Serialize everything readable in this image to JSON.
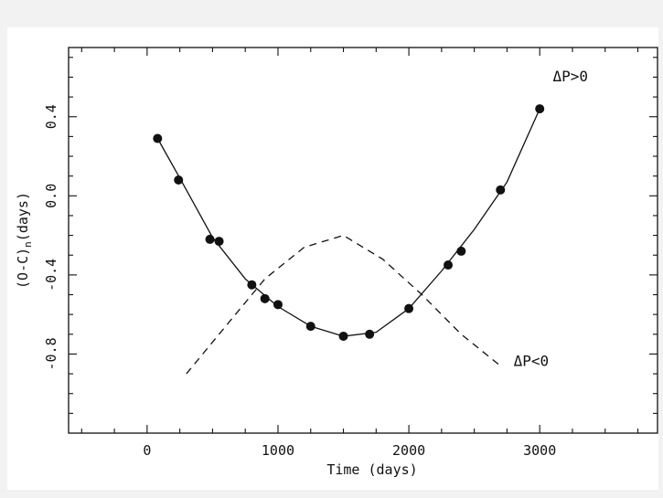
{
  "chart_data": {
    "type": "scatter",
    "xlabel": "Time (days)",
    "ylabel": "(O-C)n (days)",
    "ylabel_main": "(O-C)",
    "ylabel_sub": "n",
    "ylabel_tail": "(days)",
    "xlim": [
      -600,
      3900
    ],
    "ylim": [
      -1.2,
      0.75
    ],
    "x_ticks": [
      0,
      1000,
      2000,
      3000
    ],
    "x_tick_labels": [
      "0",
      "1000",
      "2000",
      "3000"
    ],
    "y_ticks": [
      0.4,
      0.0,
      -0.4,
      -0.8
    ],
    "y_tick_labels": [
      "0.4",
      "0.0",
      "-0.4",
      "-0.8"
    ],
    "grid": false,
    "legend": "none",
    "series": [
      {
        "style": "points",
        "points": [
          {
            "x": 80,
            "y": 0.29
          },
          {
            "x": 240,
            "y": 0.08
          },
          {
            "x": 480,
            "y": -0.22
          },
          {
            "x": 550,
            "y": -0.23
          },
          {
            "x": 800,
            "y": -0.45
          },
          {
            "x": 900,
            "y": -0.52
          },
          {
            "x": 1000,
            "y": -0.55
          },
          {
            "x": 1250,
            "y": -0.66
          },
          {
            "x": 1500,
            "y": -0.71
          },
          {
            "x": 1700,
            "y": -0.7
          },
          {
            "x": 2000,
            "y": -0.57
          },
          {
            "x": 2300,
            "y": -0.35
          },
          {
            "x": 2400,
            "y": -0.28
          },
          {
            "x": 2700,
            "y": 0.03
          },
          {
            "x": 3000,
            "y": 0.44
          }
        ]
      },
      {
        "style": "solid-curve",
        "points": [
          {
            "x": 80,
            "y": 0.29
          },
          {
            "x": 250,
            "y": 0.09
          },
          {
            "x": 500,
            "y": -0.21
          },
          {
            "x": 750,
            "y": -0.42
          },
          {
            "x": 1000,
            "y": -0.56
          },
          {
            "x": 1250,
            "y": -0.66
          },
          {
            "x": 1500,
            "y": -0.71
          },
          {
            "x": 1750,
            "y": -0.69
          },
          {
            "x": 2000,
            "y": -0.57
          },
          {
            "x": 2250,
            "y": -0.38
          },
          {
            "x": 2500,
            "y": -0.17
          },
          {
            "x": 2750,
            "y": 0.07
          },
          {
            "x": 3000,
            "y": 0.44
          }
        ]
      },
      {
        "style": "dashed-curve",
        "points": [
          {
            "x": 300,
            "y": -0.9
          },
          {
            "x": 600,
            "y": -0.66
          },
          {
            "x": 900,
            "y": -0.42
          },
          {
            "x": 1200,
            "y": -0.26
          },
          {
            "x": 1500,
            "y": -0.2
          },
          {
            "x": 1800,
            "y": -0.32
          },
          {
            "x": 2100,
            "y": -0.5
          },
          {
            "x": 2400,
            "y": -0.7
          },
          {
            "x": 2700,
            "y": -0.86
          }
        ]
      }
    ],
    "annotations": [
      {
        "text": "ΔP>0",
        "x": 3100,
        "y": 0.58
      },
      {
        "text": "ΔP<0",
        "x": 2800,
        "y": -0.86
      }
    ]
  }
}
